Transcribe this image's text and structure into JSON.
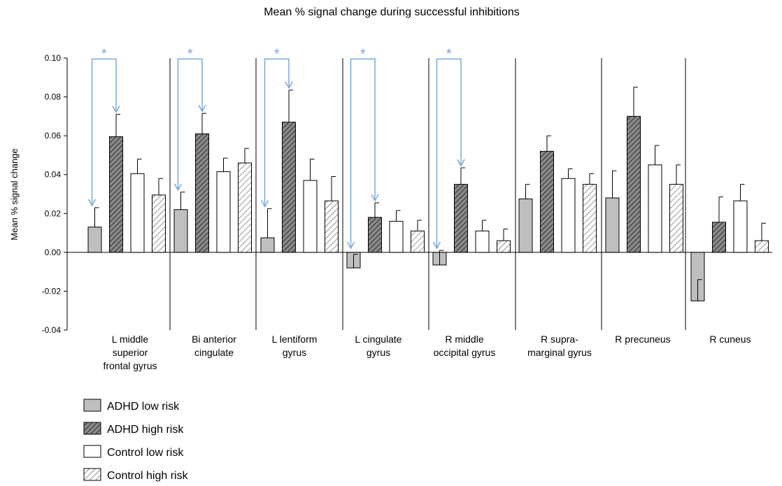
{
  "chart_data": {
    "type": "bar",
    "title": "Mean % signal change during successful inhibitions",
    "ylabel": "Mean % signal change",
    "xlabel": "",
    "ylim": [
      -0.04,
      0.1
    ],
    "yticks": [
      "0.10",
      "0.08",
      "0.06",
      "0.04",
      "0.02",
      "0.00",
      "-0.02",
      "-0.04"
    ],
    "yticks_values": [
      0.1,
      0.08,
      0.06,
      0.04,
      0.02,
      0.0,
      -0.02,
      -0.04
    ],
    "grid": false,
    "legend_position": "bottom-left",
    "categories": [
      [
        "L middle",
        "superior",
        "frontal gyrus"
      ],
      [
        "Bi anterior",
        "cingulate"
      ],
      [
        "L lentiform",
        "gyrus"
      ],
      [
        "L cingulate",
        "gyrus"
      ],
      [
        "R middle",
        "occipital gyrus"
      ],
      [
        "R supra-",
        "marginal gyrus"
      ],
      [
        "R precuneus"
      ],
      [
        "R cuneus"
      ]
    ],
    "series": [
      {
        "name": "ADHD low risk",
        "fill": "#bfbfbf",
        "pattern": "solid",
        "values": [
          0.013,
          0.022,
          0.0075,
          -0.008,
          -0.0065,
          0.0275,
          0.028,
          -0.025
        ],
        "errors": [
          0.01,
          0.009,
          0.015,
          0.007,
          0.0075,
          0.0075,
          0.014,
          0.011
        ]
      },
      {
        "name": "ADHD high risk",
        "fill": "#808080",
        "pattern": "dense-hatch",
        "values": [
          0.0595,
          0.061,
          0.067,
          0.018,
          0.035,
          0.052,
          0.07,
          0.0155
        ],
        "errors": [
          0.0115,
          0.0105,
          0.0165,
          0.0075,
          0.0085,
          0.008,
          0.015,
          0.013
        ]
      },
      {
        "name": "Control low risk",
        "fill": "#ffffff",
        "pattern": "solid",
        "values": [
          0.0405,
          0.0415,
          0.037,
          0.016,
          0.011,
          0.038,
          0.045,
          0.0265
        ],
        "errors": [
          0.0075,
          0.007,
          0.011,
          0.0055,
          0.0055,
          0.005,
          0.01,
          0.0085
        ]
      },
      {
        "name": "Control high risk",
        "fill": "#ffffff",
        "pattern": "light-hatch",
        "values": [
          0.0295,
          0.046,
          0.0265,
          0.011,
          0.006,
          0.035,
          0.035,
          0.006
        ],
        "errors": [
          0.0085,
          0.0075,
          0.0125,
          0.0055,
          0.006,
          0.0055,
          0.01,
          0.009
        ]
      }
    ],
    "annotations": [
      {
        "text": "*",
        "category_index": 0,
        "color": "#7aa7dc"
      },
      {
        "text": "*",
        "category_index": 1,
        "color": "#7aa7dc"
      },
      {
        "text": "*",
        "category_index": 2,
        "color": "#7aa7dc"
      },
      {
        "text": "*",
        "category_index": 3,
        "color": "#7aa7dc"
      },
      {
        "text": "*",
        "category_index": 4,
        "color": "#7aa7dc"
      }
    ],
    "annotation_color": "#7aa7dc"
  }
}
